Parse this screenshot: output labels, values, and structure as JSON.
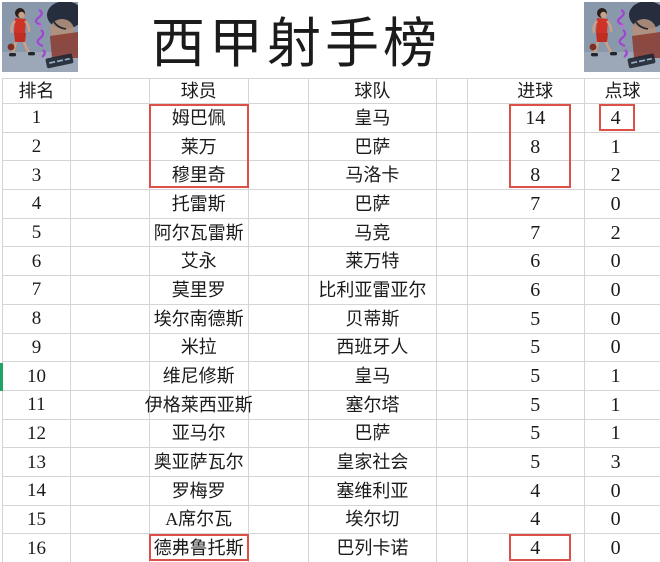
{
  "title": "西甲射手榜",
  "icons": {
    "corner_art": "basketball-player-artwork"
  },
  "colors": {
    "highlight_border": "#dd5048",
    "grid_line": "#d5d5d5",
    "text": "#1b1b1b",
    "selection_green": "#21a366"
  },
  "table": {
    "columns": [
      "排名",
      "球员",
      "球队",
      "进球",
      "点球"
    ],
    "rows": [
      {
        "rank": "1",
        "player": "姆巴佩",
        "team": "皇马",
        "goals": "14",
        "penalties": "4"
      },
      {
        "rank": "2",
        "player": "莱万",
        "team": "巴萨",
        "goals": "8",
        "penalties": "1"
      },
      {
        "rank": "3",
        "player": "穆里奇",
        "team": "马洛卡",
        "goals": "8",
        "penalties": "2"
      },
      {
        "rank": "4",
        "player": "托雷斯",
        "team": "巴萨",
        "goals": "7",
        "penalties": "0"
      },
      {
        "rank": "5",
        "player": "阿尔瓦雷斯",
        "team": "马竞",
        "goals": "7",
        "penalties": "2"
      },
      {
        "rank": "6",
        "player": "艾永",
        "team": "莱万特",
        "goals": "6",
        "penalties": "0"
      },
      {
        "rank": "7",
        "player": "莫里罗",
        "team": "比利亚雷亚尔",
        "goals": "6",
        "penalties": "0"
      },
      {
        "rank": "8",
        "player": "埃尔南德斯",
        "team": "贝蒂斯",
        "goals": "5",
        "penalties": "0"
      },
      {
        "rank": "9",
        "player": "米拉",
        "team": "西班牙人",
        "goals": "5",
        "penalties": "0"
      },
      {
        "rank": "10",
        "player": "维尼修斯",
        "team": "皇马",
        "goals": "5",
        "penalties": "1"
      },
      {
        "rank": "11",
        "player": "伊格莱西亚斯",
        "team": "塞尔塔",
        "goals": "5",
        "penalties": "1"
      },
      {
        "rank": "12",
        "player": "亚马尔",
        "team": "巴萨",
        "goals": "5",
        "penalties": "1"
      },
      {
        "rank": "13",
        "player": "奥亚萨瓦尔",
        "team": "皇家社会",
        "goals": "5",
        "penalties": "3"
      },
      {
        "rank": "14",
        "player": "罗梅罗",
        "team": "塞维利亚",
        "goals": "4",
        "penalties": "0"
      },
      {
        "rank": "15",
        "player": "A席尔瓦",
        "team": "埃尔切",
        "goals": "4",
        "penalties": "0"
      },
      {
        "rank": "16",
        "player": "德弗鲁托斯",
        "team": "巴列卡诺",
        "goals": "4",
        "penalties": "0"
      }
    ],
    "highlights": [
      {
        "column": "球员",
        "row_start": 1,
        "row_end": 3
      },
      {
        "column": "进球",
        "row_start": 1,
        "row_end": 3
      },
      {
        "column": "点球",
        "row_start": 1,
        "row_end": 1
      },
      {
        "column": "球员",
        "row_start": 16,
        "row_end": 16
      },
      {
        "column": "进球",
        "row_start": 16,
        "row_end": 16
      }
    ]
  }
}
